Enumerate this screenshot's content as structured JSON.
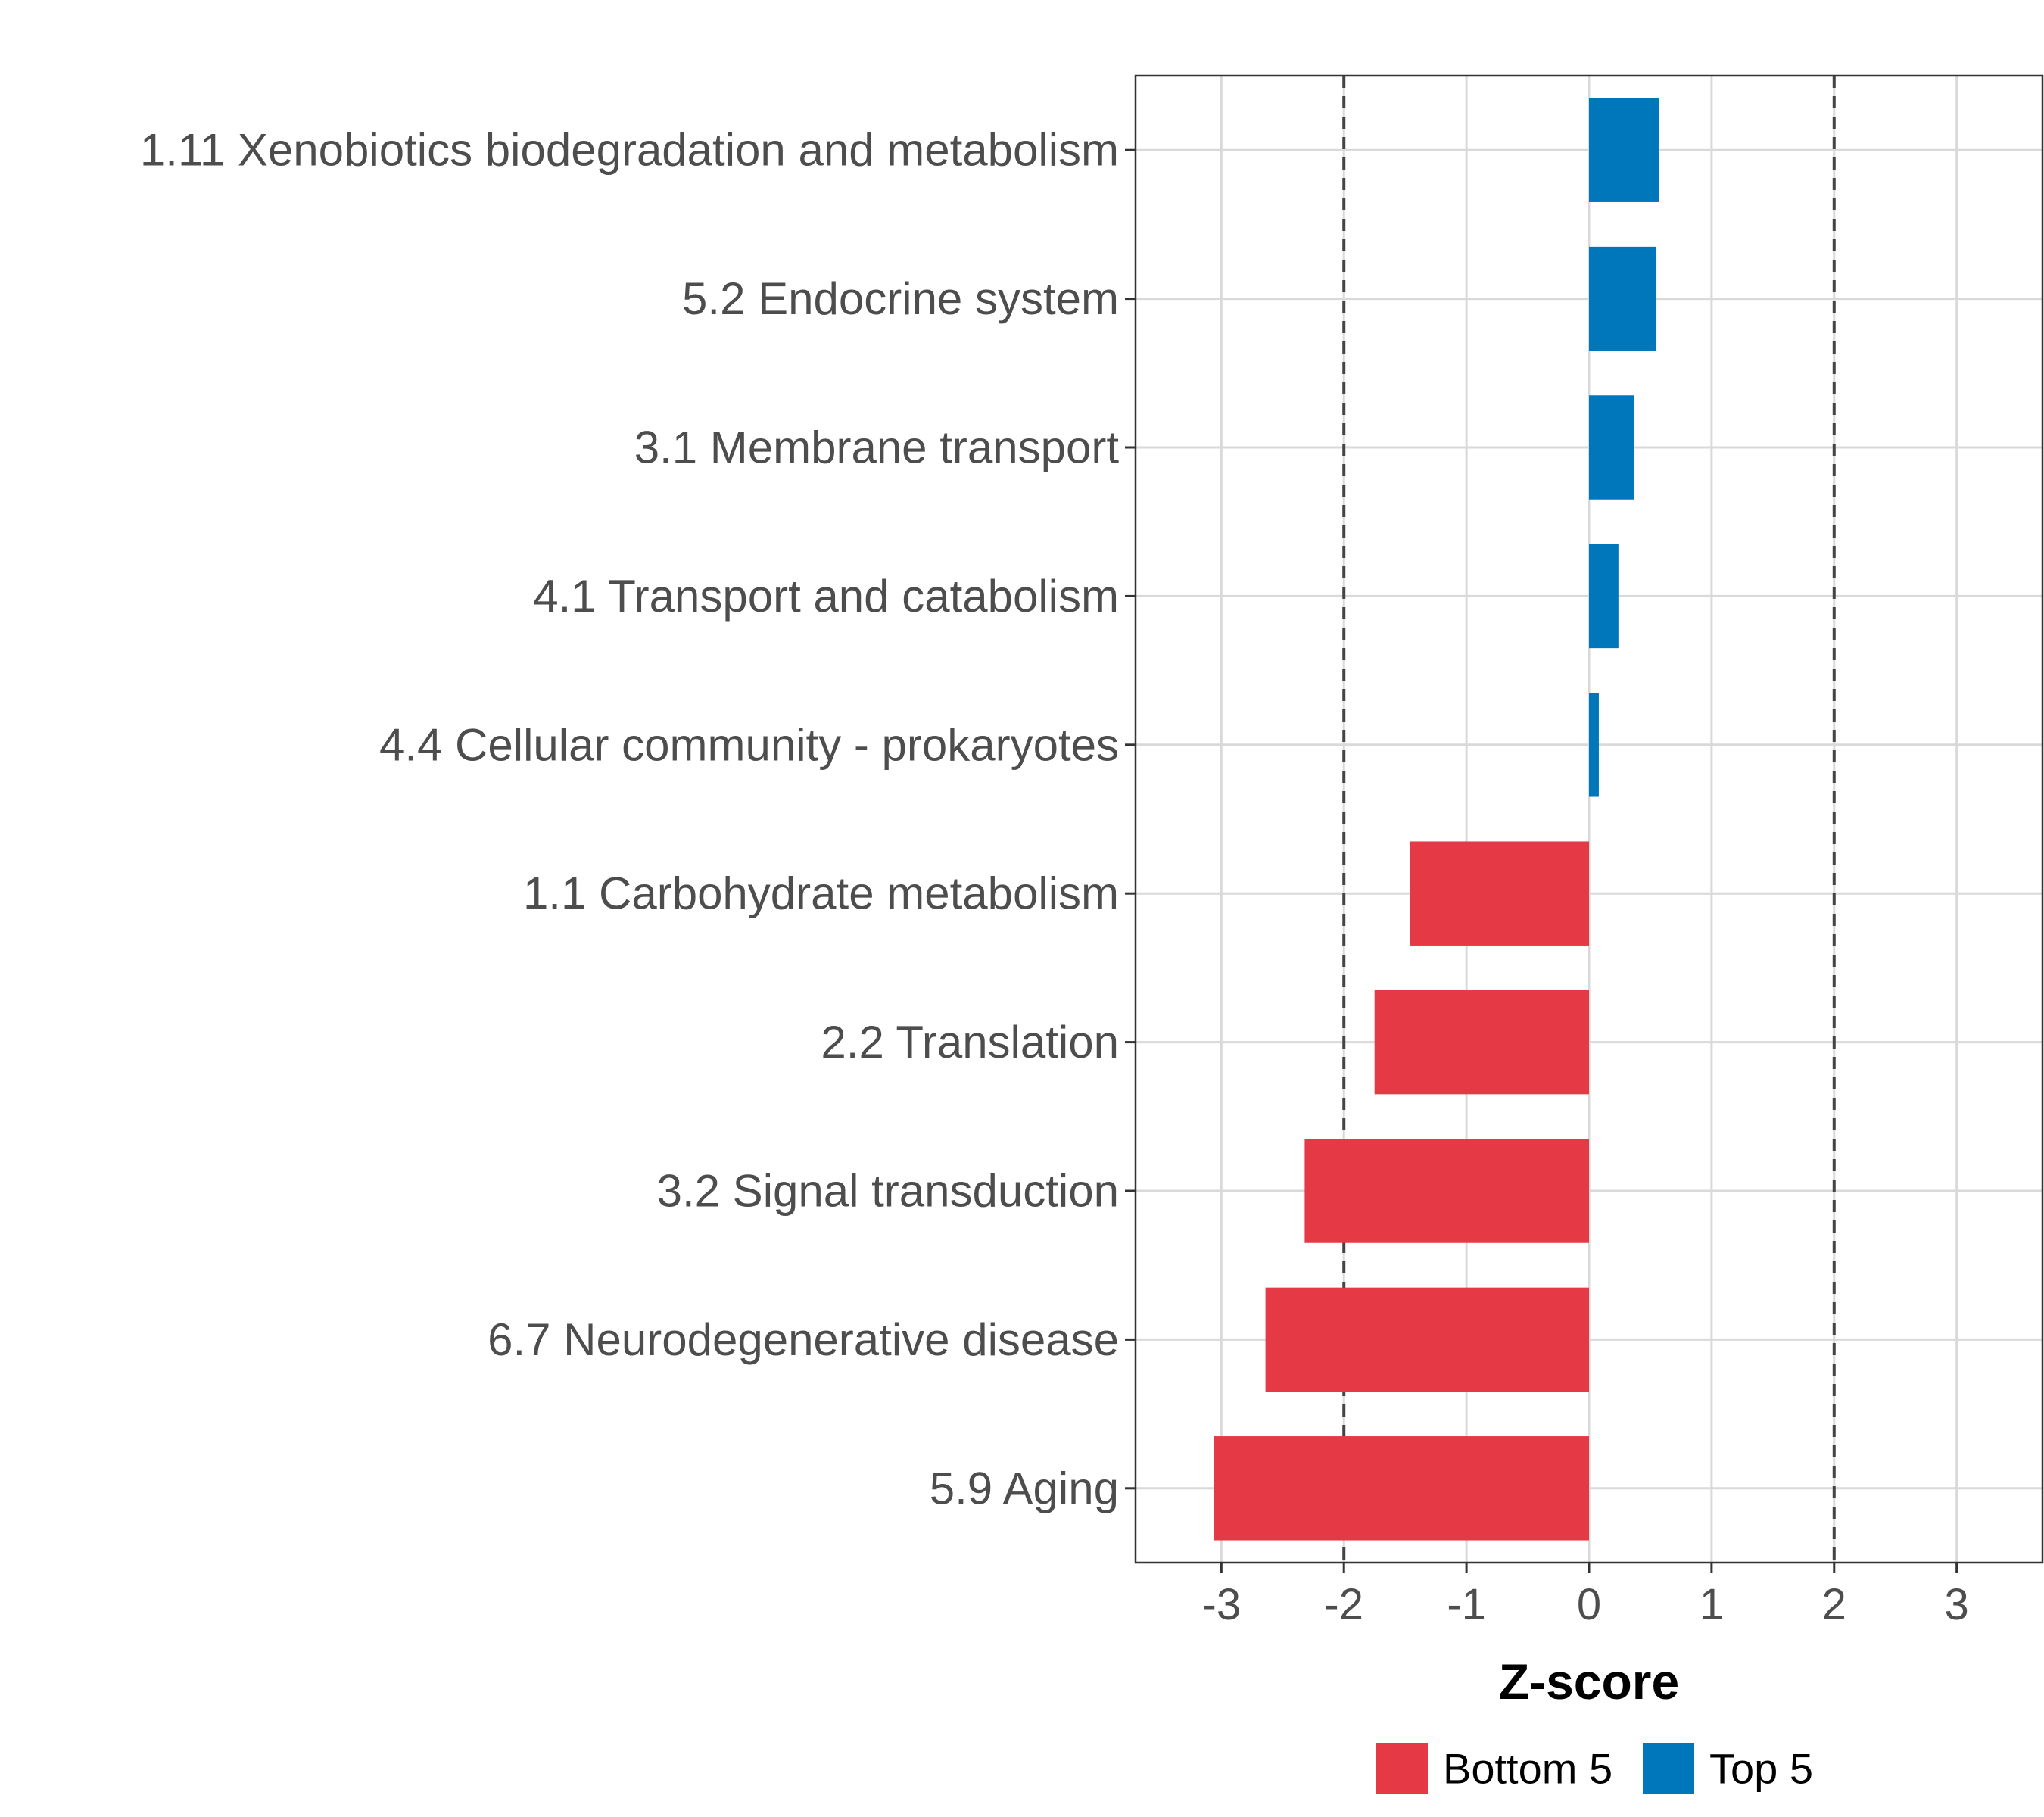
{
  "chart_data": {
    "type": "bar",
    "orientation": "horizontal",
    "xlabel": "Z-score",
    "xlim": [
      -3.7,
      3.7
    ],
    "xticks": [
      -3,
      -2,
      -1,
      0,
      1,
      2,
      3
    ],
    "xtick_labels": [
      "-3",
      "-2",
      "-1",
      "0",
      "1",
      "2",
      "3"
    ],
    "reference_lines": [
      -2,
      2
    ],
    "grid": true,
    "categories": [
      "1.11 Xenobiotics biodegradation and metabolism",
      "5.2 Endocrine system",
      "3.1 Membrane transport",
      "4.1 Transport and catabolism",
      "4.4 Cellular community - prokaryotes",
      "1.1 Carbohydrate metabolism",
      "2.2 Translation",
      "3.2 Signal transduction",
      "6.7 Neurodegenerative disease",
      "5.9 Aging"
    ],
    "values": [
      0.57,
      0.55,
      0.37,
      0.24,
      0.08,
      -1.46,
      -1.75,
      -2.32,
      -2.64,
      -3.06
    ],
    "groups": [
      "Top 5",
      "Top 5",
      "Top 5",
      "Top 5",
      "Top 5",
      "Bottom 5",
      "Bottom 5",
      "Bottom 5",
      "Bottom 5",
      "Bottom 5"
    ],
    "legend": {
      "position": "bottom",
      "entries": [
        {
          "label": "Bottom 5",
          "color": "#e63946"
        },
        {
          "label": "Top 5",
          "color": "#0077bb"
        }
      ]
    }
  }
}
